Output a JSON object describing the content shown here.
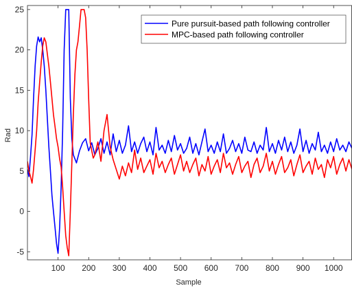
{
  "chart_data": {
    "type": "line",
    "title": "",
    "xlabel": "Sample",
    "ylabel": "Rad",
    "xlim": [
      0,
      1060
    ],
    "ylim": [
      -6,
      25.5
    ],
    "x_ticks": [
      100,
      200,
      300,
      400,
      500,
      600,
      700,
      800,
      900,
      1000
    ],
    "y_ticks": [
      -5,
      0,
      5,
      10,
      15,
      20,
      25
    ],
    "grid": false,
    "legend_position": "top-right",
    "series": [
      {
        "name": "Pure pursuit-based path following controller",
        "color": "#0000ff",
        "x": [
          0,
          5,
          10,
          15,
          20,
          25,
          30,
          35,
          40,
          45,
          50,
          55,
          60,
          65,
          70,
          75,
          80,
          85,
          90,
          95,
          100,
          105,
          110,
          115,
          120,
          125,
          130,
          135,
          140,
          145,
          150,
          155,
          160,
          170,
          180,
          190,
          200,
          210,
          220,
          230,
          240,
          250,
          260,
          270,
          280,
          290,
          300,
          310,
          320,
          330,
          340,
          350,
          360,
          370,
          380,
          390,
          400,
          410,
          420,
          430,
          440,
          450,
          460,
          470,
          480,
          490,
          500,
          510,
          520,
          530,
          540,
          550,
          560,
          570,
          580,
          590,
          600,
          610,
          620,
          630,
          640,
          650,
          660,
          670,
          680,
          690,
          700,
          710,
          720,
          730,
          740,
          750,
          760,
          770,
          780,
          790,
          800,
          810,
          820,
          830,
          840,
          850,
          860,
          870,
          880,
          890,
          900,
          910,
          920,
          930,
          940,
          950,
          960,
          970,
          980,
          990,
          1000,
          1010,
          1020,
          1030,
          1040,
          1050,
          1060
        ],
        "values": [
          5.2,
          4.3,
          6.8,
          9.5,
          14,
          18,
          20.5,
          21.6,
          21,
          21.5,
          20,
          18,
          15,
          11.5,
          8,
          5,
          2,
          0,
          -2,
          -4,
          -5.2,
          -2,
          3,
          10,
          20,
          25,
          25,
          25,
          14,
          9,
          7,
          6.5,
          6,
          7.5,
          8.5,
          9,
          7.5,
          8.5,
          7,
          7.8,
          9,
          7.2,
          8.6,
          7,
          9.6,
          7.4,
          8.8,
          7.2,
          8.2,
          10.6,
          7.4,
          8.6,
          7.2,
          8.4,
          9.2,
          7.4,
          8.6,
          7,
          10.4,
          7.6,
          8.2,
          7.2,
          8.8,
          7.4,
          9.4,
          7.6,
          8.4,
          7.2,
          7.8,
          9.2,
          7.2,
          8.4,
          7,
          8.6,
          10.2,
          7.4,
          8.2,
          7.2,
          8.6,
          7.4,
          9.6,
          7.2,
          7.8,
          8.8,
          7.4,
          8.4,
          7.2,
          9.2,
          7.6,
          7.4,
          8.6,
          7.2,
          8.2,
          7.6,
          10.4,
          7.4,
          8.4,
          7.2,
          8.8,
          7.6,
          9.2,
          7.4,
          8.6,
          7.2,
          8.2,
          10.2,
          7.4,
          8.8,
          7.2,
          8.4,
          7.6,
          9.8,
          7.4,
          8.2,
          7.2,
          8.6,
          7.4,
          9,
          7.6,
          8.2,
          7.4,
          8.6,
          7.8
        ]
      },
      {
        "name": "MPC-based path following controller",
        "color": "#ff0000",
        "x": [
          0,
          5,
          10,
          15,
          20,
          25,
          30,
          35,
          40,
          45,
          50,
          55,
          60,
          65,
          70,
          75,
          80,
          85,
          90,
          95,
          100,
          105,
          110,
          115,
          120,
          125,
          130,
          135,
          140,
          145,
          150,
          155,
          160,
          165,
          170,
          175,
          180,
          185,
          190,
          195,
          200,
          205,
          210,
          215,
          220,
          230,
          240,
          250,
          260,
          270,
          280,
          290,
          300,
          310,
          320,
          330,
          340,
          350,
          360,
          370,
          380,
          390,
          400,
          410,
          420,
          430,
          440,
          450,
          460,
          470,
          480,
          490,
          500,
          510,
          520,
          530,
          540,
          550,
          560,
          570,
          580,
          590,
          600,
          610,
          620,
          630,
          640,
          650,
          660,
          670,
          680,
          690,
          700,
          710,
          720,
          730,
          740,
          750,
          760,
          770,
          780,
          790,
          800,
          810,
          820,
          830,
          840,
          850,
          860,
          870,
          880,
          890,
          900,
          910,
          920,
          930,
          940,
          950,
          960,
          970,
          980,
          990,
          1000,
          1010,
          1020,
          1030,
          1040,
          1050,
          1060
        ],
        "values": [
          6.2,
          5,
          4.3,
          3.5,
          5.2,
          7.6,
          10,
          13.5,
          16,
          18.5,
          20.5,
          21.5,
          21,
          19.5,
          18,
          16,
          14,
          12,
          10.5,
          9,
          8,
          6.5,
          5.5,
          3,
          0,
          -3,
          -4.5,
          -5.5,
          0,
          6,
          12,
          17,
          20,
          21,
          23,
          25,
          25,
          25,
          24,
          20,
          14,
          8.5,
          7.5,
          6.6,
          7,
          8.6,
          6.2,
          10,
          12,
          8,
          6.4,
          5.2,
          4,
          5.6,
          4.4,
          6,
          4.8,
          7.6,
          5.2,
          6.6,
          4.8,
          5.6,
          6.4,
          4.6,
          7.2,
          5.4,
          6.2,
          4.8,
          5.8,
          6.6,
          4.6,
          5.8,
          7,
          5,
          6.2,
          4.8,
          5.8,
          6.6,
          4.4,
          5.8,
          5,
          6.8,
          4.6,
          5.6,
          6.4,
          4.8,
          7.2,
          5.4,
          6,
          4.6,
          5.8,
          6.8,
          4.8,
          5.6,
          6.2,
          4.2,
          5.8,
          6.6,
          4.8,
          5.6,
          7.2,
          5,
          6.2,
          4.6,
          5.8,
          6.8,
          4.8,
          5.4,
          6.4,
          4.4,
          5.8,
          7,
          4.8,
          5.6,
          6.2,
          4.6,
          6.6,
          5.2,
          5.8,
          4.2,
          6.4,
          5.4,
          6.8,
          4.6,
          5.8,
          6.6,
          5,
          6.4,
          5.2
        ]
      }
    ]
  }
}
